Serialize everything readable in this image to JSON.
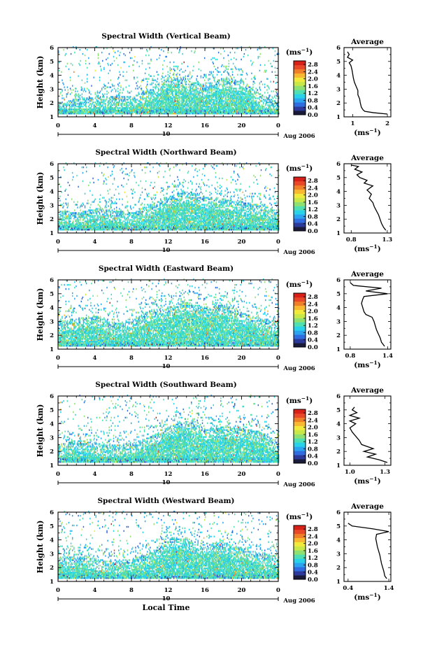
{
  "figure": {
    "x_label": "Local Time",
    "date_label": "Aug 2006",
    "day_label": "10"
  },
  "colorbar": {
    "unit": "(ms",
    "unit_sup": "−1",
    "unit_close": ")",
    "colors": [
      "#1a1a3a",
      "#2b3a9a",
      "#2f6ce0",
      "#2aa4f0",
      "#28d2e8",
      "#4ee0b0",
      "#8ee070",
      "#c8e848",
      "#f2ea3a",
      "#f8b830",
      "#f08028",
      "#e84828",
      "#d82018"
    ],
    "ticks": [
      "0.0",
      "0.4",
      "0.8",
      "1.2",
      "1.6",
      "2.0",
      "2.4",
      "2.8"
    ]
  },
  "chart_data": [
    {
      "type": "heatmap",
      "title": "Spectral Width (Vertical Beam)",
      "xlabel": "",
      "ylabel": "Height (km)",
      "x_ticks": [
        "0",
        "4",
        "8",
        "12",
        "16",
        "20",
        "0"
      ],
      "y_ticks": [
        "1",
        "2",
        "3",
        "4",
        "5",
        "6"
      ],
      "xlim": [
        0,
        24
      ],
      "ylim": [
        1,
        6
      ],
      "colorbar_ticks": [
        "0.0",
        "0.4",
        "0.8",
        "1.2",
        "1.6",
        "2.0",
        "2.4",
        "2.8"
      ],
      "colorbar_range": [
        0.0,
        3.0
      ],
      "coverage": [
        {
          "hour": 0,
          "top_km": 2.0
        },
        {
          "hour": 2,
          "top_km": 2.2
        },
        {
          "hour": 4,
          "top_km": 2.4
        },
        {
          "hour": 6,
          "top_km": 2.5
        },
        {
          "hour": 8,
          "top_km": 2.4
        },
        {
          "hour": 10,
          "top_km": 3.0
        },
        {
          "hour": 12,
          "top_km": 3.8
        },
        {
          "hour": 14,
          "top_km": 3.6
        },
        {
          "hour": 16,
          "top_km": 3.2
        },
        {
          "hour": 18,
          "top_km": 3.8
        },
        {
          "hour": 20,
          "top_km": 3.6
        },
        {
          "hour": 22,
          "top_km": 2.6
        },
        {
          "hour": 24,
          "top_km": 2.0
        }
      ],
      "avg_title": "Average",
      "avg_xlabel": "(ms",
      "avg_xlabel_sup": "−1",
      "avg_xlabel_close": ")",
      "avg_x_ticks": [
        "1",
        "2"
      ],
      "avg_xlim": [
        0.75,
        2.1
      ],
      "avg_y_ticks": [
        "1",
        "2",
        "3",
        "4",
        "5",
        "6"
      ],
      "avg_ylim": [
        1,
        6
      ],
      "avg_profile": {
        "height_km": [
          1.2,
          1.3,
          1.4,
          1.5,
          1.7,
          2.0,
          2.3,
          2.6,
          2.9,
          3.2,
          3.5,
          3.8,
          4.1,
          4.4,
          4.7,
          4.9,
          5.1,
          5.3,
          5.5,
          5.7
        ],
        "width": [
          2.0,
          1.6,
          1.35,
          1.3,
          1.25,
          1.22,
          1.2,
          1.15,
          1.15,
          1.1,
          1.05,
          1.02,
          1.0,
          0.98,
          0.95,
          0.9,
          1.0,
          0.85,
          0.9,
          0.85
        ]
      }
    },
    {
      "type": "heatmap",
      "title": "Spectral Width (Northward Beam)",
      "xlabel": "",
      "ylabel": "Height (km)",
      "x_ticks": [
        "0",
        "4",
        "8",
        "12",
        "16",
        "20",
        "0"
      ],
      "y_ticks": [
        "1",
        "2",
        "3",
        "4",
        "5",
        "6"
      ],
      "xlim": [
        0,
        24
      ],
      "ylim": [
        1,
        6
      ],
      "colorbar_ticks": [
        "0.0",
        "0.4",
        "0.8",
        "1.2",
        "1.6",
        "2.0",
        "2.4",
        "2.8"
      ],
      "colorbar_range": [
        0.0,
        3.0
      ],
      "coverage": [
        {
          "hour": 0,
          "top_km": 2.6
        },
        {
          "hour": 2,
          "top_km": 2.4
        },
        {
          "hour": 4,
          "top_km": 2.8
        },
        {
          "hour": 6,
          "top_km": 2.6
        },
        {
          "hour": 8,
          "top_km": 2.4
        },
        {
          "hour": 10,
          "top_km": 3.0
        },
        {
          "hour": 12,
          "top_km": 3.6
        },
        {
          "hour": 14,
          "top_km": 4.0
        },
        {
          "hour": 16,
          "top_km": 3.6
        },
        {
          "hour": 18,
          "top_km": 3.4
        },
        {
          "hour": 20,
          "top_km": 3.2
        },
        {
          "hour": 22,
          "top_km": 3.0
        },
        {
          "hour": 24,
          "top_km": 2.6
        }
      ],
      "avg_title": "Average",
      "avg_xlabel": "(ms",
      "avg_xlabel_sup": "−1",
      "avg_xlabel_close": ")",
      "avg_x_ticks": [
        "0.8",
        "1.3"
      ],
      "avg_xlim": [
        0.7,
        1.35
      ],
      "avg_y_ticks": [
        "1",
        "2",
        "3",
        "4",
        "5",
        "6"
      ],
      "avg_ylim": [
        1,
        6
      ],
      "avg_profile": {
        "height_km": [
          1.2,
          1.4,
          1.7,
          2.0,
          2.3,
          2.6,
          2.9,
          3.2,
          3.5,
          3.8,
          4.1,
          4.4,
          4.6,
          4.8,
          5.0,
          5.2,
          5.4,
          5.6,
          5.8,
          5.9
        ],
        "width": [
          1.28,
          1.25,
          1.22,
          1.2,
          1.18,
          1.15,
          1.12,
          1.1,
          1.05,
          1.08,
          1.02,
          1.1,
          0.98,
          1.02,
          0.92,
          0.88,
          0.95,
          0.85,
          0.9,
          0.8
        ]
      }
    },
    {
      "type": "heatmap",
      "title": "Spectral Width (Eastward Beam)",
      "xlabel": "",
      "ylabel": "Height (km)",
      "x_ticks": [
        "0",
        "4",
        "8",
        "12",
        "16",
        "20",
        "0"
      ],
      "y_ticks": [
        "1",
        "2",
        "3",
        "4",
        "5",
        "6"
      ],
      "xlim": [
        0,
        24
      ],
      "ylim": [
        1,
        6
      ],
      "colorbar_ticks": [
        "0.0",
        "0.4",
        "0.8",
        "1.2",
        "1.6",
        "2.0",
        "2.4",
        "2.8"
      ],
      "colorbar_range": [
        0.0,
        3.0
      ],
      "coverage": [
        {
          "hour": 0,
          "top_km": 3.0
        },
        {
          "hour": 2,
          "top_km": 3.2
        },
        {
          "hour": 4,
          "top_km": 3.4
        },
        {
          "hour": 6,
          "top_km": 2.8
        },
        {
          "hour": 8,
          "top_km": 3.0
        },
        {
          "hour": 10,
          "top_km": 3.8
        },
        {
          "hour": 12,
          "top_km": 4.0
        },
        {
          "hour": 14,
          "top_km": 4.4
        },
        {
          "hour": 16,
          "top_km": 4.0
        },
        {
          "hour": 18,
          "top_km": 4.2
        },
        {
          "hour": 20,
          "top_km": 3.6
        },
        {
          "hour": 22,
          "top_km": 3.2
        },
        {
          "hour": 24,
          "top_km": 3.0
        }
      ],
      "avg_title": "Average",
      "avg_xlabel": "(ms",
      "avg_xlabel_sup": "−1",
      "avg_xlabel_close": ")",
      "avg_x_ticks": [
        "0.8",
        "1.4"
      ],
      "avg_xlim": [
        0.7,
        1.45
      ],
      "avg_y_ticks": [
        "1",
        "2",
        "3",
        "4",
        "5",
        "6"
      ],
      "avg_ylim": [
        1,
        6
      ],
      "avg_profile": {
        "height_km": [
          1.2,
          1.5,
          1.8,
          2.1,
          2.4,
          2.7,
          3.0,
          3.3,
          3.5,
          3.7,
          4.0,
          4.3,
          4.6,
          4.8,
          5.0,
          5.2,
          5.4,
          5.6,
          5.8
        ],
        "width": [
          1.35,
          1.3,
          1.28,
          1.25,
          1.22,
          1.2,
          1.18,
          1.15,
          1.05,
          1.02,
          1.0,
          0.98,
          1.0,
          1.02,
          1.4,
          1.05,
          1.3,
          0.85,
          0.8
        ]
      }
    },
    {
      "type": "heatmap",
      "title": "Spectral Width (Southward Beam)",
      "xlabel": "",
      "ylabel": "Height (km)",
      "x_ticks": [
        "0",
        "4",
        "8",
        "12",
        "16",
        "20",
        "0"
      ],
      "y_ticks": [
        "1",
        "2",
        "3",
        "4",
        "5",
        "6"
      ],
      "xlim": [
        0,
        24
      ],
      "ylim": [
        1,
        6
      ],
      "colorbar_ticks": [
        "0.0",
        "0.4",
        "0.8",
        "1.2",
        "1.6",
        "2.0",
        "2.4",
        "2.8"
      ],
      "colorbar_range": [
        0.0,
        3.0
      ],
      "coverage": [
        {
          "hour": 0,
          "top_km": 2.4
        },
        {
          "hour": 2,
          "top_km": 2.8
        },
        {
          "hour": 4,
          "top_km": 2.6
        },
        {
          "hour": 6,
          "top_km": 2.4
        },
        {
          "hour": 8,
          "top_km": 2.6
        },
        {
          "hour": 10,
          "top_km": 3.0
        },
        {
          "hour": 12,
          "top_km": 3.8
        },
        {
          "hour": 14,
          "top_km": 4.2
        },
        {
          "hour": 16,
          "top_km": 3.6
        },
        {
          "hour": 18,
          "top_km": 3.8
        },
        {
          "hour": 20,
          "top_km": 3.6
        },
        {
          "hour": 22,
          "top_km": 3.4
        },
        {
          "hour": 24,
          "top_km": 2.6
        }
      ],
      "avg_title": "Average",
      "avg_xlabel": "(ms",
      "avg_xlabel_sup": "−1",
      "avg_xlabel_close": ")",
      "avg_x_ticks": [
        "1.0",
        "1.3"
      ],
      "avg_xlim": [
        0.95,
        1.35
      ],
      "avg_y_ticks": [
        "1",
        "2",
        "3",
        "4",
        "5",
        "6"
      ],
      "avg_ylim": [
        1,
        6
      ],
      "avg_profile": {
        "height_km": [
          1.2,
          1.4,
          1.6,
          1.8,
          2.0,
          2.2,
          2.5,
          2.8,
          3.1,
          3.4,
          3.7,
          4.0,
          4.2,
          4.4,
          4.6,
          4.8,
          5.0,
          5.2
        ],
        "width": [
          1.32,
          1.25,
          1.15,
          1.22,
          1.12,
          1.2,
          1.1,
          1.08,
          1.05,
          1.02,
          1.0,
          1.05,
          1.0,
          1.08,
          1.0,
          1.06,
          1.02,
          1.04
        ]
      }
    },
    {
      "type": "heatmap",
      "title": "Spectral Width (Westward Beam)",
      "xlabel": "Local Time",
      "ylabel": "Height (km)",
      "x_ticks": [
        "0",
        "4",
        "8",
        "12",
        "16",
        "20",
        "0"
      ],
      "y_ticks": [
        "1",
        "2",
        "3",
        "4",
        "5",
        "6"
      ],
      "xlim": [
        0,
        24
      ],
      "ylim": [
        1,
        6
      ],
      "colorbar_ticks": [
        "0.0",
        "0.4",
        "0.8",
        "1.2",
        "1.6",
        "2.0",
        "2.4",
        "2.8"
      ],
      "colorbar_range": [
        0.0,
        3.0
      ],
      "coverage": [
        {
          "hour": 0,
          "top_km": 2.8
        },
        {
          "hour": 2,
          "top_km": 2.8
        },
        {
          "hour": 4,
          "top_km": 2.6
        },
        {
          "hour": 6,
          "top_km": 2.4
        },
        {
          "hour": 8,
          "top_km": 2.6
        },
        {
          "hour": 10,
          "top_km": 3.0
        },
        {
          "hour": 12,
          "top_km": 4.2
        },
        {
          "hour": 14,
          "top_km": 4.0
        },
        {
          "hour": 16,
          "top_km": 3.6
        },
        {
          "hour": 18,
          "top_km": 3.8
        },
        {
          "hour": 20,
          "top_km": 3.4
        },
        {
          "hour": 22,
          "top_km": 3.0
        },
        {
          "hour": 24,
          "top_km": 2.8
        }
      ],
      "avg_title": "Average",
      "avg_xlabel": "(ms",
      "avg_xlabel_sup": "−1",
      "avg_xlabel_close": ")",
      "avg_x_ticks": [
        "0.4",
        "1.4"
      ],
      "avg_xlim": [
        0.3,
        1.45
      ],
      "avg_y_ticks": [
        "1",
        "2",
        "3",
        "4",
        "5",
        "6"
      ],
      "avg_ylim": [
        1,
        6
      ],
      "avg_profile": {
        "height_km": [
          1.2,
          1.4,
          1.7,
          2.0,
          2.3,
          2.6,
          2.9,
          3.2,
          3.5,
          3.8,
          4.1,
          4.4,
          4.6,
          4.8,
          5.0,
          5.2
        ],
        "width": [
          1.35,
          1.3,
          1.28,
          1.25,
          1.22,
          1.2,
          1.18,
          1.15,
          1.12,
          1.1,
          1.08,
          1.1,
          1.4,
          1.0,
          0.5,
          0.4
        ]
      }
    }
  ]
}
